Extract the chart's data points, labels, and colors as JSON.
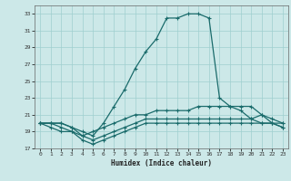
{
  "xlabel": "Humidex (Indice chaleur)",
  "bg_color": "#cce8e8",
  "grid_color": "#9fcfcf",
  "line_color": "#1a6b6b",
  "xlim": [
    -0.5,
    23.5
  ],
  "ylim": [
    17,
    34
  ],
  "xticks": [
    0,
    1,
    2,
    3,
    4,
    5,
    6,
    7,
    8,
    9,
    10,
    11,
    12,
    13,
    14,
    15,
    16,
    17,
    18,
    19,
    20,
    21,
    22,
    23
  ],
  "yticks": [
    17,
    19,
    21,
    23,
    25,
    27,
    29,
    31,
    33
  ],
  "curve1_x": [
    0,
    1,
    2,
    3,
    4,
    5,
    6,
    7,
    8,
    9,
    10,
    11,
    12,
    13,
    14,
    15,
    16,
    17,
    18,
    19,
    20,
    21,
    22,
    23
  ],
  "curve1_y": [
    20.0,
    20.0,
    20.0,
    19.5,
    19.0,
    18.5,
    20.0,
    22.0,
    24.0,
    26.5,
    28.5,
    30.0,
    32.5,
    32.5,
    33.0,
    33.0,
    32.5,
    23.0,
    22.0,
    21.5,
    20.5,
    21.0,
    20.0,
    19.5
  ],
  "curve2_x": [
    0,
    1,
    2,
    3,
    4,
    5,
    6,
    7,
    8,
    9,
    10,
    11,
    12,
    13,
    14,
    15,
    16,
    17,
    18,
    19,
    20,
    21,
    22,
    23
  ],
  "curve2_y": [
    20.0,
    19.5,
    19.0,
    19.0,
    18.5,
    19.0,
    19.5,
    20.0,
    20.5,
    21.0,
    21.0,
    21.5,
    21.5,
    21.5,
    21.5,
    22.0,
    22.0,
    22.0,
    22.0,
    22.0,
    22.0,
    21.0,
    20.5,
    20.0
  ],
  "curve3_x": [
    0,
    1,
    2,
    3,
    4,
    5,
    6,
    7,
    8,
    9,
    10,
    11,
    12,
    13,
    14,
    15,
    16,
    17,
    18,
    19,
    20,
    21,
    22,
    23
  ],
  "curve3_y": [
    20.0,
    20.0,
    19.5,
    19.0,
    18.0,
    17.5,
    18.0,
    18.5,
    19.0,
    19.5,
    20.0,
    20.0,
    20.0,
    20.0,
    20.0,
    20.0,
    20.0,
    20.0,
    20.0,
    20.0,
    20.0,
    20.0,
    20.0,
    20.0
  ],
  "curve4_x": [
    0,
    1,
    2,
    3,
    4,
    5,
    6,
    7,
    8,
    9,
    10,
    11,
    12,
    13,
    14,
    15,
    16,
    17,
    18,
    19,
    20,
    21,
    22,
    23
  ],
  "curve4_y": [
    20.0,
    20.0,
    20.0,
    19.5,
    18.5,
    18.0,
    18.5,
    19.0,
    19.5,
    20.0,
    20.5,
    20.5,
    20.5,
    20.5,
    20.5,
    20.5,
    20.5,
    20.5,
    20.5,
    20.5,
    20.5,
    20.0,
    20.0,
    19.5
  ]
}
